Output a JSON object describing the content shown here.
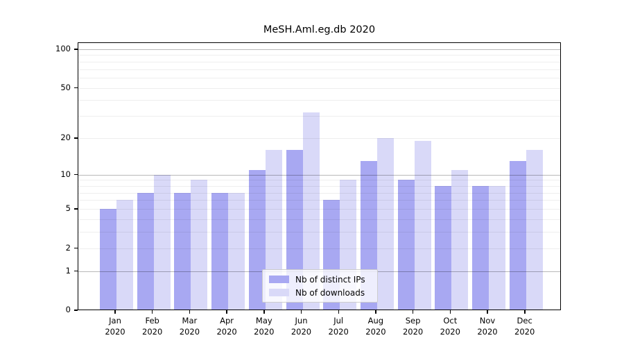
{
  "chart_data": {
    "type": "bar",
    "title": "MeSH.Aml.eg.db 2020",
    "yscale": "log1p",
    "ylim": [
      0,
      112
    ],
    "grid": true,
    "legend_position": "lower center",
    "categories": [
      {
        "month": "Jan",
        "year": "2020"
      },
      {
        "month": "Feb",
        "year": "2020"
      },
      {
        "month": "Mar",
        "year": "2020"
      },
      {
        "month": "Apr",
        "year": "2020"
      },
      {
        "month": "May",
        "year": "2020"
      },
      {
        "month": "Jun",
        "year": "2020"
      },
      {
        "month": "Jul",
        "year": "2020"
      },
      {
        "month": "Aug",
        "year": "2020"
      },
      {
        "month": "Sep",
        "year": "2020"
      },
      {
        "month": "Oct",
        "year": "2020"
      },
      {
        "month": "Nov",
        "year": "2020"
      },
      {
        "month": "Dec",
        "year": "2020"
      }
    ],
    "series": [
      {
        "name": "Nb of distinct IPs",
        "key": "distinct-ips",
        "color": "#a8a8f2",
        "values": [
          5,
          7,
          7,
          7,
          11,
          16,
          6,
          13,
          9,
          8,
          8,
          13
        ]
      },
      {
        "name": "Nb of downloads",
        "key": "downloads",
        "color": "#d9d9f8",
        "values": [
          6,
          10,
          9,
          7,
          16,
          32,
          9,
          20,
          19,
          11,
          8,
          16
        ]
      }
    ],
    "y_tick_labels": [
      100,
      50,
      20,
      10,
      5,
      2,
      1,
      0
    ],
    "gridlines_minor": [
      2,
      3,
      4,
      5,
      6,
      7,
      8,
      9,
      20,
      30,
      40,
      50,
      60,
      70,
      80,
      90
    ],
    "gridlines_major": [
      1,
      10,
      100
    ]
  }
}
